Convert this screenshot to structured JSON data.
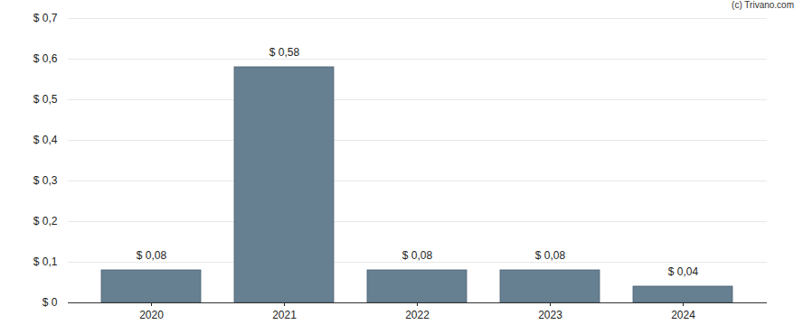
{
  "chart_data": {
    "type": "bar",
    "annotations": [
      "(c) Trivano.com"
    ],
    "categories": [
      "2020",
      "2021",
      "2022",
      "2023",
      "2024"
    ],
    "values": [
      0.08,
      0.58,
      0.08,
      0.08,
      0.04
    ],
    "value_labels": [
      "$ 0,08",
      "$ 0,58",
      "$ 0,08",
      "$ 0,08",
      "$ 0,04"
    ],
    "data_labels": true,
    "color": "#667f91",
    "ylim": [
      0,
      0.7
    ],
    "yticks": [
      {
        "value": 0,
        "label": "$ 0"
      },
      {
        "value": 0.1,
        "label": "$ 0,1"
      },
      {
        "value": 0.2,
        "label": "$ 0,2"
      },
      {
        "value": 0.3,
        "label": "$ 0,3"
      },
      {
        "value": 0.4,
        "label": "$ 0,4"
      },
      {
        "value": 0.5,
        "label": "$ 0,5"
      },
      {
        "value": 0.6,
        "label": "$ 0,6"
      },
      {
        "value": 0.7,
        "label": "$ 0,7"
      }
    ],
    "grid": true
  }
}
